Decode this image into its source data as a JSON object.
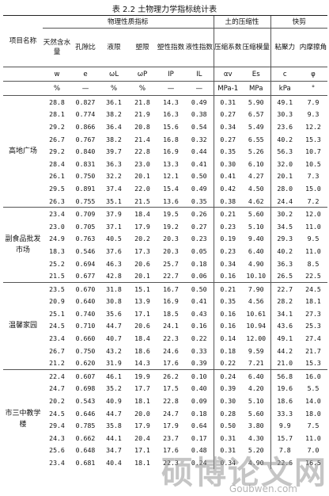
{
  "caption": "表 2.2 土物理力学指标统计表",
  "header": {
    "location_label": "项目名称",
    "group_physical": "物理性质指标",
    "group_compress": "土的压缩性",
    "group_shear": "快剪",
    "columns": [
      "天然含水量",
      "孔隙比",
      "液限",
      "塑限",
      "塑性指数",
      "液性指数",
      "压缩系数",
      "压缩模量",
      "粘聚力",
      "内摩擦角"
    ],
    "symbols": [
      "w",
      "e",
      "ωL",
      "ωP",
      "IP",
      "IL",
      "αv",
      "Es",
      "c",
      "φ"
    ],
    "units": [
      "%",
      "—",
      "%",
      "%",
      "—",
      "—",
      "MPa-1",
      "MPa",
      "kPa",
      "°"
    ]
  },
  "groups": [
    {
      "location": "高地广场",
      "rows": [
        [
          "28.8",
          "0.827",
          "36.1",
          "21.8",
          "14.3",
          "0.49",
          "0.31",
          "5.90",
          "49.1",
          "7.9"
        ],
        [
          "28.1",
          "0.774",
          "38.2",
          "21.9",
          "16.3",
          "0.38",
          "0.27",
          "6.57",
          "30.3",
          "9.3"
        ],
        [
          "29.2",
          "0.866",
          "36.4",
          "20.8",
          "15.6",
          "0.54",
          "0.34",
          "5.49",
          "23.6",
          "12.2"
        ],
        [
          "26.7",
          "0.767",
          "38.2",
          "21.4",
          "16.8",
          "0.32",
          "0.27",
          "6.55",
          "40.2",
          "15.3"
        ],
        [
          "29.2",
          "0.840",
          "39.7",
          "22.8",
          "16.9",
          "0.44",
          "0.35",
          "5.26",
          "56.3",
          "10.7"
        ],
        [
          "28.4",
          "0.831",
          "36.3",
          "23.0",
          "13.3",
          "0.41",
          "0.30",
          "6.10",
          "32.0",
          "10.5"
        ],
        [
          "26.1",
          "0.750",
          "32.2",
          "20.1",
          "12.1",
          "0.50",
          "0.41",
          "4.27",
          "20.1",
          "7.3"
        ],
        [
          "29.5",
          "0.891",
          "37.4",
          "22.0",
          "15.4",
          "0.49",
          "0.42",
          "4.50",
          "28.0",
          "15.0"
        ],
        [
          "26.3",
          "0.755",
          "35.1",
          "21.5",
          "13.6",
          "0.35",
          "0.38",
          "4.62",
          "24.4",
          "7.2"
        ]
      ]
    },
    {
      "location": "副食品批发市场",
      "rows": [
        [
          "23.4",
          "0.709",
          "37.9",
          "18.4",
          "19.5",
          "0.26",
          "0.21",
          "5.60",
          "30.2",
          "12.0"
        ],
        [
          "23.0",
          "0.705",
          "37.1",
          "17.9",
          "19.2",
          "0.27",
          "0.23",
          "5.10",
          "34.5",
          "11.0"
        ],
        [
          "24.9",
          "0.763",
          "40.5",
          "20.2",
          "20.3",
          "0.23",
          "0.19",
          "9.40",
          "29.3",
          "9.5"
        ],
        [
          "18.3",
          "0.546",
          "37.6",
          "17.3",
          "20.3",
          "0.05",
          "0.23",
          "6.40",
          "40.2",
          "11.0"
        ],
        [
          "25.2",
          "0.694",
          "46.3",
          "20.6",
          "25.7",
          "0.18",
          "0.34",
          "4.90",
          "36.3",
          "8.5"
        ],
        [
          "21.5",
          "0.677",
          "42.8",
          "20.1",
          "22.7",
          "0.06",
          "0.16",
          "10.10",
          "26.5",
          "22.5"
        ]
      ]
    },
    {
      "location": "温馨家园",
      "rows": [
        [
          "23.5",
          "0.670",
          "31.8",
          "15.1",
          "16.7",
          "0.50",
          "0.21",
          "7.90",
          "22.7",
          "24.5"
        ],
        [
          "20.9",
          "0.640",
          "30.8",
          "13.9",
          "16.9",
          "0.41",
          "0.35",
          "4.56",
          "28.2",
          "18.1"
        ],
        [
          "25.1",
          "0.740",
          "35.6",
          "17.1",
          "18.5",
          "0.43",
          "0.16",
          "10.61",
          "34.1",
          "27.3"
        ],
        [
          "24.5",
          "0.710",
          "44.7",
          "20.6",
          "24.1",
          "0.16",
          "0.16",
          "10.94",
          "43.6",
          "25.3"
        ],
        [
          "23.4",
          "0.660",
          "40.7",
          "18.4",
          "22.3",
          "0.22",
          "0.14",
          "12.00",
          "49.1",
          "27.4"
        ],
        [
          "26.7",
          "0.750",
          "43.2",
          "18.6",
          "24.6",
          "0.33",
          "0.18",
          "9.59",
          "44.2",
          "21.7"
        ],
        [
          "21.2",
          "0.620",
          "31.9",
          "14.3",
          "17.6",
          "0.39",
          "0.22",
          "7.21",
          "21.0",
          "15.3"
        ]
      ]
    },
    {
      "location": "市三中教学楼",
      "rows": [
        [
          "22.4",
          "0.607",
          "46.1",
          "19.9",
          "26.2",
          "0.10",
          "0.24",
          "6.40",
          "56.8",
          "16.0"
        ],
        [
          "24.7",
          "0.698",
          "35.2",
          "17.7",
          "17.5",
          "0.40",
          "0.39",
          "4.20",
          "19.6",
          "5.5"
        ],
        [
          "20.2",
          "0.543",
          "40.9",
          "18.1",
          "22.8",
          "0.09",
          "0.30",
          "5.10",
          "18.6",
          "14.0"
        ],
        [
          "24.5",
          "0.646",
          "44.7",
          "20.0",
          "24.7",
          "0.18",
          "0.28",
          "5.60",
          "33.3",
          "18.0"
        ],
        [
          "29.4",
          "0.785",
          "35.8",
          "17.9",
          "17.9",
          "0.64",
          "0.50",
          "3.80",
          "9.9",
          "7.5"
        ],
        [
          "24.3",
          "0.662",
          "44.1",
          "20.4",
          "23.7",
          "0.17",
          "0.31",
          "4.30",
          "15.7",
          "11.0"
        ],
        [
          "25.6",
          "0.648",
          "34.7",
          "17.1",
          "17.6",
          "0.48",
          "0.31",
          "5.20",
          "7.8",
          "7.0"
        ],
        [
          "23.4",
          "0.681",
          "40.4",
          "18.1",
          "22.3",
          "0.24",
          "0.34",
          "4.90",
          "22.6",
          "16.5"
        ]
      ]
    }
  ],
  "watermark": {
    "text": "硕博论文网",
    "url": "Goubwen.com"
  }
}
